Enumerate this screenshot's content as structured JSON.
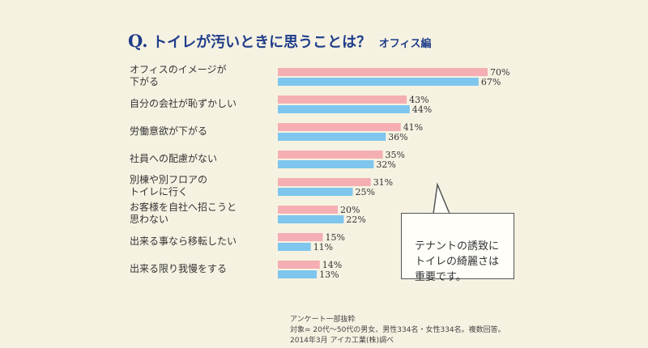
{
  "title": {
    "prefix": "Q.",
    "main": "トイレが汚いときに思うことは？",
    "sub": "オフィス編"
  },
  "colors": {
    "background": "#f6f2e2",
    "title": "#1f3d8a",
    "series_pink": "#f4aeb4",
    "series_blue": "#7ec6ee"
  },
  "chart_data": {
    "type": "bar",
    "orientation": "horizontal",
    "categories": [
      "オフィスのイメージが\n下がる",
      "自分の会社が恥ずかしい",
      "労働意欲が下がる",
      "社員への配慮がない",
      "別棟や別フロアの\nトイレに行く",
      "お客様を自社へ招こうと\n思わない",
      "出来る事なら移転したい",
      "出来る限り我慢をする"
    ],
    "series": [
      {
        "values": [
          70,
          43,
          41,
          35,
          31,
          20,
          15,
          14
        ]
      },
      {
        "values": [
          67,
          44,
          36,
          32,
          25,
          22,
          11,
          13
        ]
      }
    ],
    "value_suffix": "%",
    "xlim": [
      0,
      100
    ],
    "grid": false,
    "legend": "none"
  },
  "callout": {
    "text": "テナントの誘致に\nトイレの綺麗さは\n重要です。"
  },
  "footnote": {
    "text": "アンケート一部抜粋\n対象= 20代～50代の男女、男性334名・女性334名。複数回答。\n2014年3月 アイカ工業(株)調べ"
  }
}
